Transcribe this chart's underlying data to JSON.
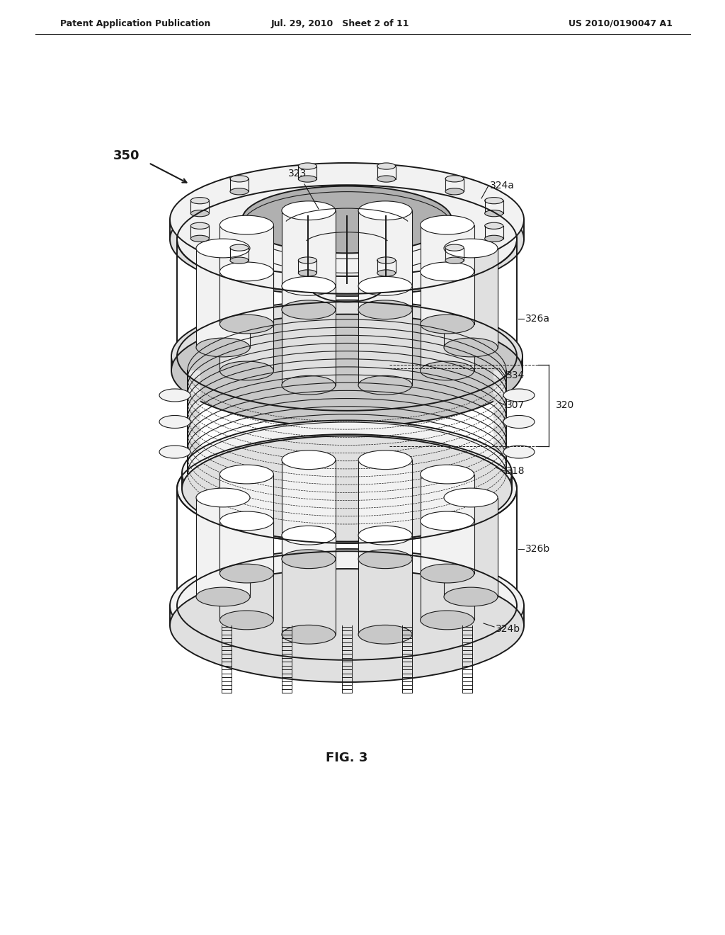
{
  "title_left": "Patent Application Publication",
  "title_center": "Jul. 29, 2010   Sheet 2 of 11",
  "title_right": "US 2010/0190047 A1",
  "fig_label": "FIG. 3",
  "ref_350": "350",
  "ref_323": "323",
  "ref_324a": "324a",
  "ref_326a": "326a",
  "ref_334": "334",
  "ref_307": "307",
  "ref_320": "320",
  "ref_318": "318",
  "ref_326b": "326b",
  "ref_324b": "324b",
  "bg_color": "#ffffff",
  "line_color": "#1a1a1a",
  "header_fontsize": 9,
  "label_fontsize": 10,
  "fig_fontsize": 13
}
